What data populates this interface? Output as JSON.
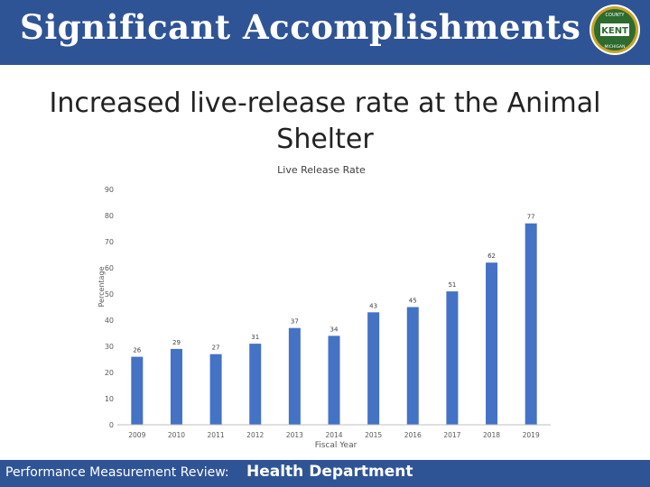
{
  "slide": {
    "title": "Significant Accomplishments",
    "heading": "Increased live-release rate at the Animal Shelter"
  },
  "footer": {
    "label": "Performance Measurement Review:",
    "department": "Health Department"
  },
  "seal": {
    "top_text": "COUNTY",
    "center_text": "KENT",
    "bottom_text": "MICHIGAN"
  },
  "colors": {
    "bar": "#4472c4",
    "title_bar": "#2f5496",
    "seal_green": "#2e6b2e",
    "seal_gold": "#c9a227"
  },
  "chart_data": {
    "type": "bar",
    "title": "Live Release Rate",
    "xlabel": "Fiscal Year",
    "ylabel": "Percentage",
    "categories": [
      "2009",
      "2010",
      "2011",
      "2012",
      "2013",
      "2014",
      "2015",
      "2016",
      "2017",
      "2018",
      "2019"
    ],
    "values": [
      26,
      29,
      27,
      31,
      37,
      34,
      43,
      45,
      51,
      62,
      77
    ],
    "ylim": [
      0,
      90
    ],
    "yticks": [
      0,
      10,
      20,
      30,
      40,
      50,
      60,
      70,
      80,
      90
    ],
    "grid": false,
    "legend": "none"
  }
}
